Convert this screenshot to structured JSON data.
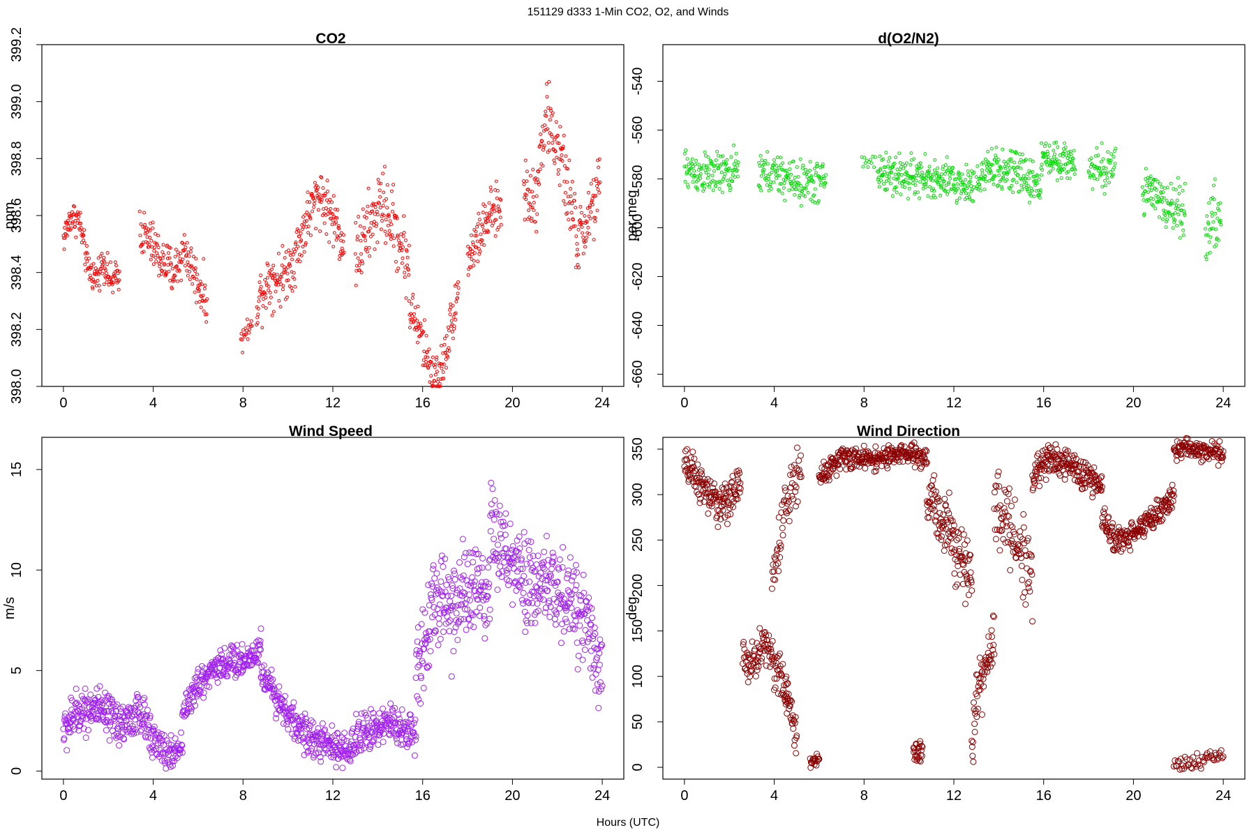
{
  "figure": {
    "suptitle": "151129    d333    1-Min CO2, O2, and Winds",
    "xlabel": "Hours (UTC)"
  },
  "chart_data": [
    {
      "id": "co2",
      "type": "scatter",
      "title": "CO2",
      "ylabel": "ppm",
      "xlim": [
        0,
        24
      ],
      "ylim": [
        398.0,
        399.2
      ],
      "xticks": [
        0,
        4,
        8,
        12,
        16,
        20,
        24
      ],
      "yticks": [
        398.0,
        398.2,
        398.4,
        398.6,
        398.8,
        399.0,
        399.2
      ],
      "yticklabels": [
        "398.0",
        "398.2",
        "398.4",
        "398.6",
        "398.8",
        "399.0",
        "399.2"
      ],
      "color": "#ff0000",
      "marker_radius": 2,
      "segments": [
        {
          "x0": 0.0,
          "x1": 2.5,
          "y": [
            398.52,
            398.6,
            398.58,
            398.42,
            398.38,
            398.44,
            398.36,
            398.4
          ],
          "noise": 0.04,
          "n": 150
        },
        {
          "x0": 3.4,
          "x1": 6.4,
          "y": [
            398.55,
            398.5,
            398.44,
            398.4,
            398.48,
            398.38,
            398.3
          ],
          "noise": 0.06,
          "n": 170
        },
        {
          "x0": 7.9,
          "x1": 8.4,
          "y": [
            398.15,
            398.2,
            398.2
          ],
          "noise": 0.03,
          "n": 20
        },
        {
          "x0": 8.6,
          "x1": 12.5,
          "y": [
            398.3,
            398.38,
            398.38,
            398.45,
            398.58,
            398.68,
            398.6,
            398.5
          ],
          "noise": 0.07,
          "n": 230
        },
        {
          "x0": 13.0,
          "x1": 15.4,
          "y": [
            398.45,
            398.55,
            398.65,
            398.55,
            398.42
          ],
          "noise": 0.09,
          "n": 140
        },
        {
          "x0": 15.4,
          "x1": 17.6,
          "y": [
            398.28,
            398.2,
            398.08,
            398.02,
            398.18,
            398.35
          ],
          "noise": 0.06,
          "n": 130
        },
        {
          "x0": 18.0,
          "x1": 19.5,
          "y": [
            398.45,
            398.52,
            398.6,
            398.62
          ],
          "noise": 0.06,
          "n": 90
        },
        {
          "x0": 20.5,
          "x1": 23.9,
          "y": [
            398.7,
            398.65,
            398.95,
            398.85,
            398.7,
            398.5,
            398.6,
            398.7
          ],
          "noise": 0.09,
          "n": 200
        }
      ]
    },
    {
      "id": "o2",
      "type": "scatter",
      "title": "d(O2/N2)",
      "ylabel": "per meg",
      "xlim": [
        0,
        24
      ],
      "ylim": [
        -665,
        -525
      ],
      "xticks": [
        0,
        4,
        8,
        12,
        16,
        20,
        24
      ],
      "yticks": [
        -660,
        -640,
        -620,
        -600,
        -580,
        -560,
        -540
      ],
      "yticklabels": [
        "-660",
        "-640",
        "-620",
        "-600",
        "-580",
        "-560",
        "-540"
      ],
      "color": "#00dd00",
      "marker_radius": 2,
      "segments": [
        {
          "x0": 0.0,
          "x1": 2.4,
          "y": [
            -576,
            -578,
            -578,
            -577
          ],
          "noise": 6,
          "n": 130
        },
        {
          "x0": 3.3,
          "x1": 6.3,
          "y": [
            -577,
            -579,
            -582,
            -580
          ],
          "noise": 6,
          "n": 160
        },
        {
          "x0": 7.9,
          "x1": 8.5,
          "y": [
            -573,
            -573
          ],
          "noise": 3,
          "n": 12
        },
        {
          "x0": 8.6,
          "x1": 12.9,
          "y": [
            -577,
            -579,
            -581,
            -583
          ],
          "noise": 6,
          "n": 250
        },
        {
          "x0": 13.0,
          "x1": 15.9,
          "y": [
            -579,
            -576,
            -578,
            -583
          ],
          "noise": 6,
          "n": 170
        },
        {
          "x0": 15.9,
          "x1": 17.4,
          "y": [
            -571,
            -572,
            -574
          ],
          "noise": 5,
          "n": 90
        },
        {
          "x0": 18.0,
          "x1": 19.2,
          "y": [
            -574,
            -578,
            -572
          ],
          "noise": 7,
          "n": 60
        },
        {
          "x0": 20.4,
          "x1": 22.3,
          "y": [
            -584,
            -590,
            -593
          ],
          "noise": 7,
          "n": 110
        },
        {
          "x0": 23.2,
          "x1": 23.9,
          "y": [
            -600,
            -596
          ],
          "noise": 10,
          "n": 40
        }
      ]
    },
    {
      "id": "wspd",
      "type": "scatter",
      "title": "Wind Speed",
      "ylabel": "m/s",
      "xlim": [
        0,
        24
      ],
      "ylim": [
        -0.4,
        16.6
      ],
      "xticks": [
        0,
        4,
        8,
        12,
        16,
        20,
        24
      ],
      "yticks": [
        0,
        5,
        10,
        15
      ],
      "yticklabels": [
        "0",
        "5",
        "10",
        "15"
      ],
      "color": "#a020f0",
      "marker_radius": 4,
      "segments": [
        {
          "x0": 0.0,
          "x1": 4.0,
          "y": [
            2.0,
            3.0,
            3.2,
            2.6,
            2.4,
            2.8,
            2.0
          ],
          "noise": 0.8,
          "n": 240
        },
        {
          "x0": 4.0,
          "x1": 5.3,
          "y": [
            1.5,
            1.0,
            0.8,
            1.4
          ],
          "noise": 0.6,
          "n": 70
        },
        {
          "x0": 5.3,
          "x1": 8.8,
          "y": [
            3.0,
            4.2,
            5.2,
            5.4,
            5.5,
            6.2
          ],
          "noise": 0.6,
          "n": 210
        },
        {
          "x0": 8.8,
          "x1": 12.8,
          "y": [
            5.0,
            3.5,
            2.2,
            1.5,
            1.2,
            0.8
          ],
          "noise": 0.6,
          "n": 240
        },
        {
          "x0": 12.8,
          "x1": 15.7,
          "y": [
            1.5,
            2.0,
            2.4,
            2.2,
            1.8
          ],
          "noise": 0.7,
          "n": 170
        },
        {
          "x0": 15.7,
          "x1": 19.0,
          "y": [
            5.0,
            8.5,
            8.2,
            9.0,
            8.0
          ],
          "noise": 1.8,
          "n": 200
        },
        {
          "x0": 19.0,
          "x1": 24.0,
          "y": [
            12.0,
            10.5,
            9.0,
            9.5,
            8.5,
            8.0,
            5.0
          ],
          "noise": 1.6,
          "n": 300
        }
      ]
    },
    {
      "id": "wdir",
      "type": "scatter",
      "title": "Wind Direction",
      "ylabel": "deg",
      "xlim": [
        0,
        24
      ],
      "ylim": [
        -13,
        363
      ],
      "xticks": [
        0,
        4,
        8,
        12,
        16,
        20,
        24
      ],
      "yticks": [
        0,
        50,
        100,
        150,
        200,
        250,
        300,
        350
      ],
      "yticklabels": [
        "0",
        "50",
        "100",
        "150",
        "200",
        "250",
        "300",
        "350"
      ],
      "color": "#8b0000",
      "marker_radius": 4,
      "segments": [
        {
          "x0": 0.0,
          "x1": 2.5,
          "y": [
            330,
            320,
            300,
            290,
            295,
            310
          ],
          "noise": 15,
          "n": 150
        },
        {
          "x0": 2.6,
          "x1": 4.6,
          "y": [
            120,
            115,
            140,
            110,
            75
          ],
          "noise": 18,
          "n": 110
        },
        {
          "x0": 3.9,
          "x1": 5.2,
          "y": [
            200,
            250,
            290,
            310,
            330
          ],
          "noise": 20,
          "n": 60
        },
        {
          "x0": 4.5,
          "x1": 5.0,
          "y": [
            90,
            60,
            30
          ],
          "noise": 15,
          "n": 30
        },
        {
          "x0": 5.6,
          "x1": 6.0,
          "y": [
            5,
            8,
            10
          ],
          "noise": 4,
          "n": 20
        },
        {
          "x0": 6.0,
          "x1": 10.8,
          "y": [
            320,
            340,
            340,
            340,
            345,
            340
          ],
          "noise": 8,
          "n": 280
        },
        {
          "x0": 10.2,
          "x1": 10.6,
          "y": [
            20,
            10,
            15
          ],
          "noise": 12,
          "n": 25
        },
        {
          "x0": 10.8,
          "x1": 12.8,
          "y": [
            300,
            280,
            260,
            240,
            200
          ],
          "noise": 25,
          "n": 120
        },
        {
          "x0": 12.8,
          "x1": 13.8,
          "y": [
            20,
            90,
            110,
            140
          ],
          "noise": 20,
          "n": 60
        },
        {
          "x0": 13.8,
          "x1": 15.5,
          "y": [
            300,
            270,
            240,
            210
          ],
          "noise": 30,
          "n": 90
        },
        {
          "x0": 15.5,
          "x1": 18.6,
          "y": [
            320,
            340,
            335,
            320,
            310
          ],
          "noise": 12,
          "n": 190
        },
        {
          "x0": 18.6,
          "x1": 21.8,
          "y": [
            270,
            250,
            255,
            270,
            280,
            300
          ],
          "noise": 10,
          "n": 190
        },
        {
          "x0": 21.8,
          "x1": 24.0,
          "y": [
            350,
            350,
            348,
            345
          ],
          "noise": 8,
          "n": 120
        },
        {
          "x0": 21.8,
          "x1": 24.0,
          "y": [
            5,
            5,
            10,
            15
          ],
          "noise": 6,
          "n": 50
        }
      ]
    }
  ]
}
